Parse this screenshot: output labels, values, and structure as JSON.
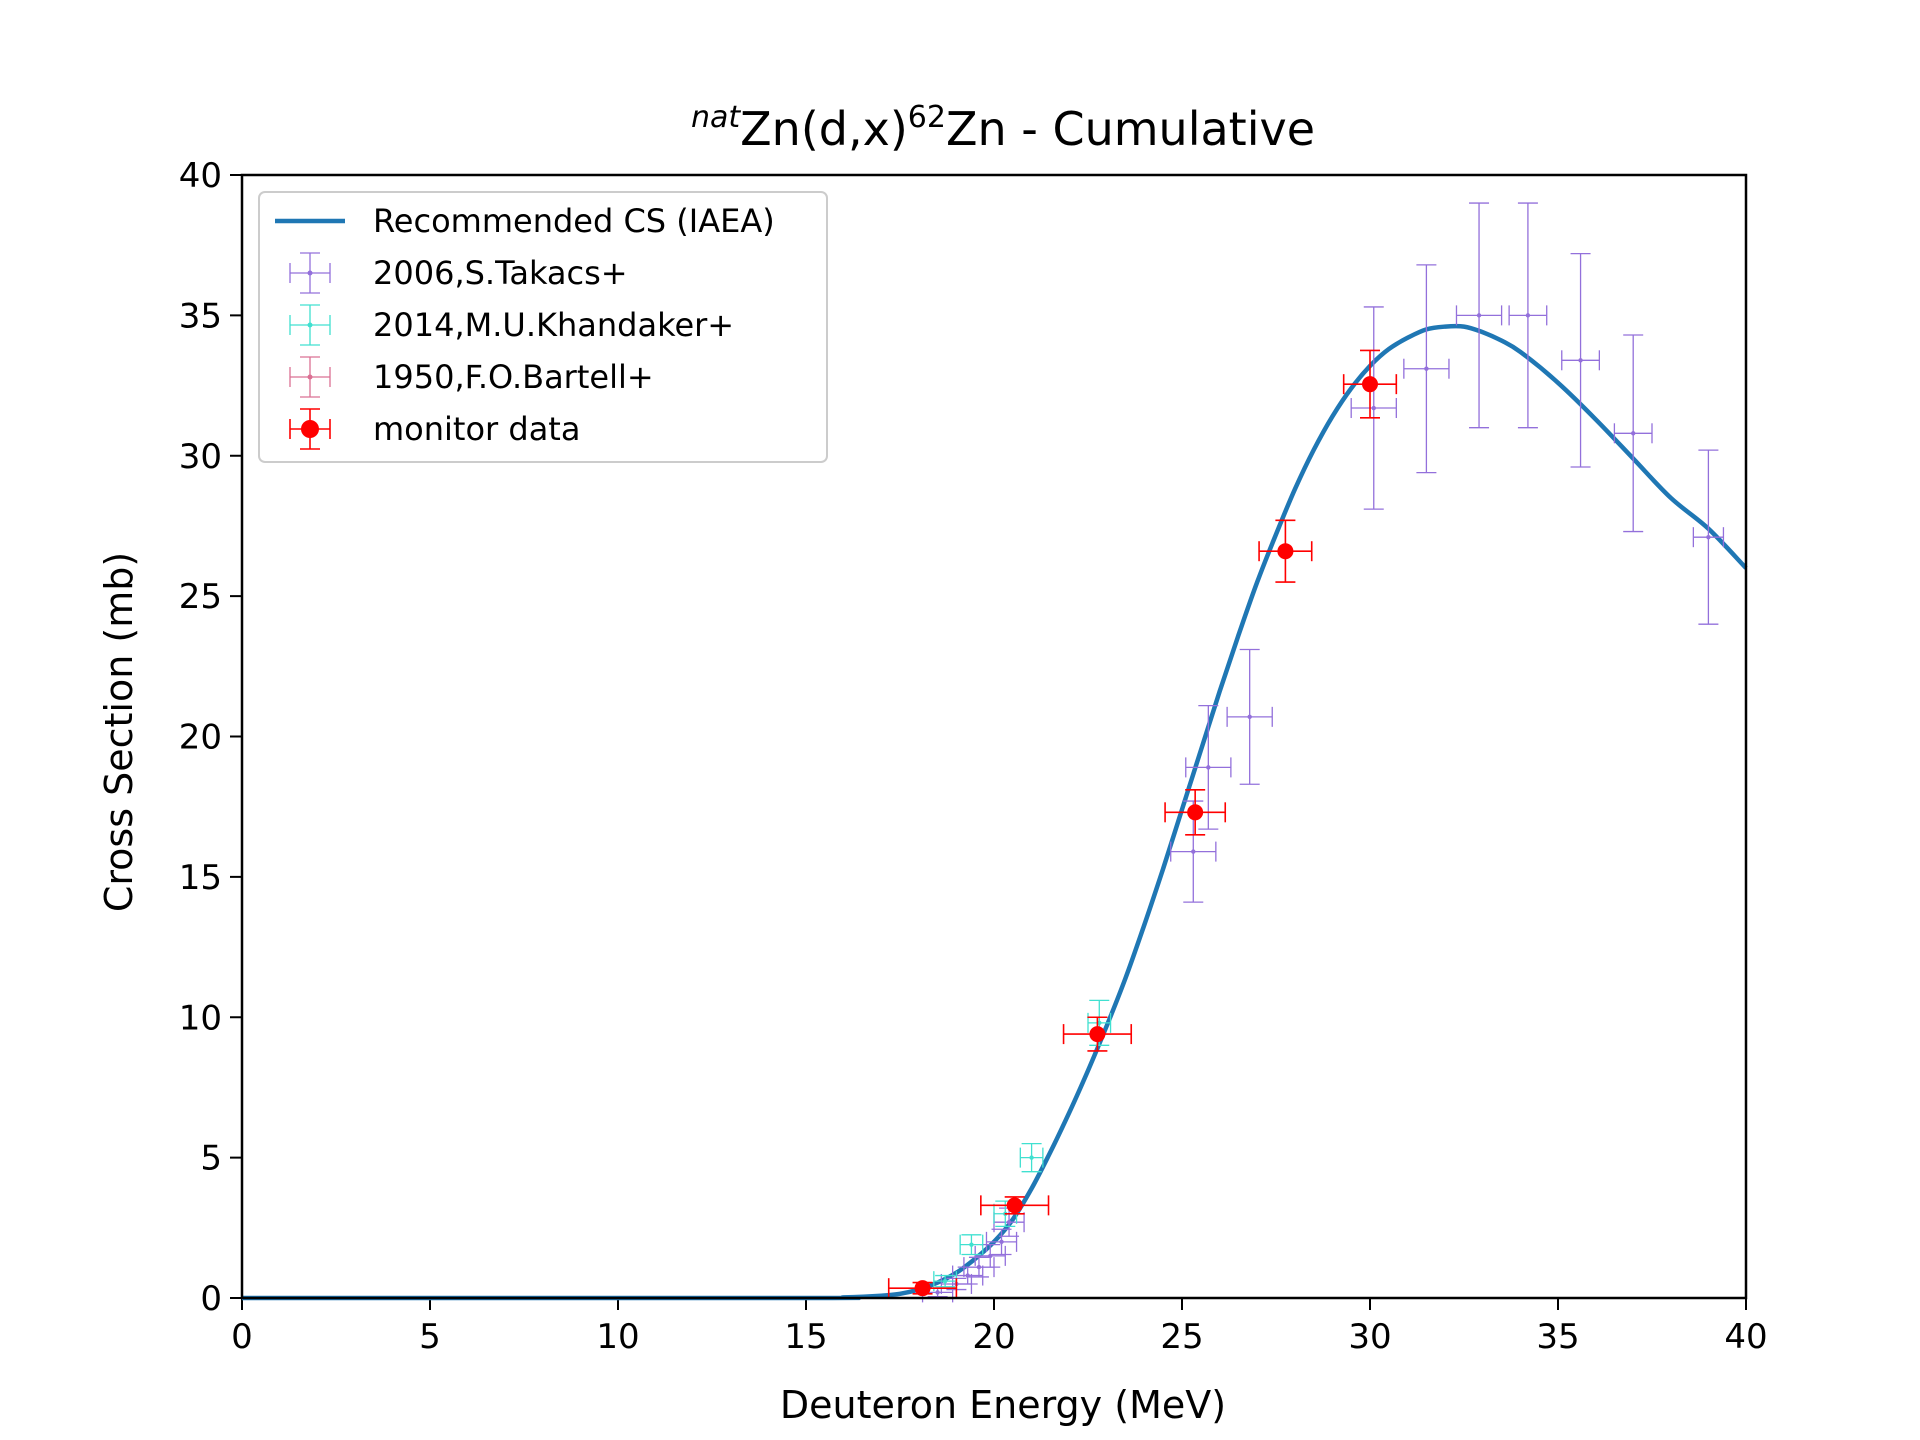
{
  "chart_data": {
    "type": "scatter",
    "title": {
      "sup_left": "nat",
      "main_a": "Zn(d,x)",
      "sup_mid": "62",
      "main_b": "Zn - Cumulative"
    },
    "xlabel": "Deuteron Energy (MeV)",
    "ylabel": "Cross Section (mb)",
    "xlim": [
      0,
      40
    ],
    "ylim": [
      0,
      40
    ],
    "xticks": [
      0,
      5,
      10,
      15,
      20,
      25,
      30,
      35,
      40
    ],
    "yticks": [
      0,
      5,
      10,
      15,
      20,
      25,
      30,
      35,
      40
    ],
    "grid": false,
    "legend_position": "top-left",
    "curve": {
      "name": "Recommended CS (IAEA)",
      "color": "#1f77b4",
      "x": [
        0,
        15,
        16,
        17,
        17.5,
        18,
        18.5,
        19,
        19.5,
        20,
        20.5,
        21,
        21.5,
        22,
        22.5,
        23,
        23.5,
        24,
        24.5,
        25,
        25.5,
        26,
        26.5,
        27,
        27.5,
        28,
        28.5,
        29,
        29.5,
        30,
        30.5,
        31,
        31.5,
        32,
        32.5,
        33,
        33.5,
        34,
        35,
        36,
        37,
        38,
        39,
        40
      ],
      "y": [
        0,
        0,
        0.02,
        0.08,
        0.15,
        0.3,
        0.55,
        0.9,
        1.4,
        2.0,
        2.8,
        3.9,
        5.2,
        6.6,
        8.1,
        9.7,
        11.4,
        13.3,
        15.3,
        17.4,
        19.5,
        21.6,
        23.6,
        25.5,
        27.2,
        28.8,
        30.2,
        31.4,
        32.4,
        33.2,
        33.8,
        34.2,
        34.5,
        34.6,
        34.6,
        34.4,
        34.1,
        33.7,
        32.6,
        31.3,
        29.9,
        28.5,
        27.4,
        26.0
      ]
    },
    "series": [
      {
        "name": "2006,S.Takacs+",
        "color": "#9370db",
        "points": [
          {
            "x": 18.5,
            "y": 0.2,
            "xerr": 0.4,
            "yerr": 0.15
          },
          {
            "x": 19.0,
            "y": 0.5,
            "xerr": 0.4,
            "yerr": 0.2
          },
          {
            "x": 19.3,
            "y": 0.8,
            "xerr": 0.4,
            "yerr": 0.3
          },
          {
            "x": 19.6,
            "y": 1.1,
            "xerr": 0.4,
            "yerr": 0.35
          },
          {
            "x": 19.9,
            "y": 1.5,
            "xerr": 0.4,
            "yerr": 0.4
          },
          {
            "x": 20.2,
            "y": 2.0,
            "xerr": 0.4,
            "yerr": 0.45
          },
          {
            "x": 20.4,
            "y": 2.7,
            "xerr": 0.4,
            "yerr": 0.5
          },
          {
            "x": 25.3,
            "y": 15.9,
            "xerr": 0.6,
            "yerr": 1.8
          },
          {
            "x": 25.7,
            "y": 18.9,
            "xerr": 0.6,
            "yerr": 2.2
          },
          {
            "x": 26.8,
            "y": 20.7,
            "xerr": 0.6,
            "yerr": 2.4
          },
          {
            "x": 30.1,
            "y": 31.7,
            "xerr": 0.6,
            "yerr": 3.6
          },
          {
            "x": 31.5,
            "y": 33.1,
            "xerr": 0.6,
            "yerr": 3.7
          },
          {
            "x": 32.9,
            "y": 35.0,
            "xerr": 0.6,
            "yerr": 4.0
          },
          {
            "x": 34.2,
            "y": 35.0,
            "xerr": 0.5,
            "yerr": 4.0
          },
          {
            "x": 35.6,
            "y": 33.4,
            "xerr": 0.5,
            "yerr": 3.8
          },
          {
            "x": 37.0,
            "y": 30.8,
            "xerr": 0.5,
            "yerr": 3.5
          },
          {
            "x": 39.0,
            "y": 27.1,
            "xerr": 0.4,
            "yerr": 3.1
          }
        ]
      },
      {
        "name": "2014,M.U.Khandaker+",
        "color": "#40e0d0",
        "points": [
          {
            "x": 18.7,
            "y": 0.6,
            "xerr": 0.3,
            "yerr": 0.2
          },
          {
            "x": 19.4,
            "y": 1.9,
            "xerr": 0.3,
            "yerr": 0.35
          },
          {
            "x": 20.3,
            "y": 3.0,
            "xerr": 0.3,
            "yerr": 0.45
          },
          {
            "x": 21.0,
            "y": 5.0,
            "xerr": 0.3,
            "yerr": 0.5
          },
          {
            "x": 22.8,
            "y": 9.8,
            "xerr": 0.3,
            "yerr": 0.8
          }
        ]
      },
      {
        "name": "1950,F.O.Bartell+",
        "color": "#db7093",
        "points": []
      },
      {
        "name": "monitor data",
        "color": "#ff0000",
        "points": [
          {
            "x": 18.1,
            "y": 0.35,
            "xerr": 0.9,
            "yerr": 0.2
          },
          {
            "x": 20.55,
            "y": 3.3,
            "xerr": 0.9,
            "yerr": 0.3
          },
          {
            "x": 22.75,
            "y": 9.4,
            "xerr": 0.9,
            "yerr": 0.6
          },
          {
            "x": 25.35,
            "y": 17.3,
            "xerr": 0.8,
            "yerr": 0.8
          },
          {
            "x": 27.75,
            "y": 26.6,
            "xerr": 0.7,
            "yerr": 1.1
          },
          {
            "x": 30.0,
            "y": 32.55,
            "xerr": 0.7,
            "yerr": 1.2
          }
        ]
      }
    ]
  }
}
